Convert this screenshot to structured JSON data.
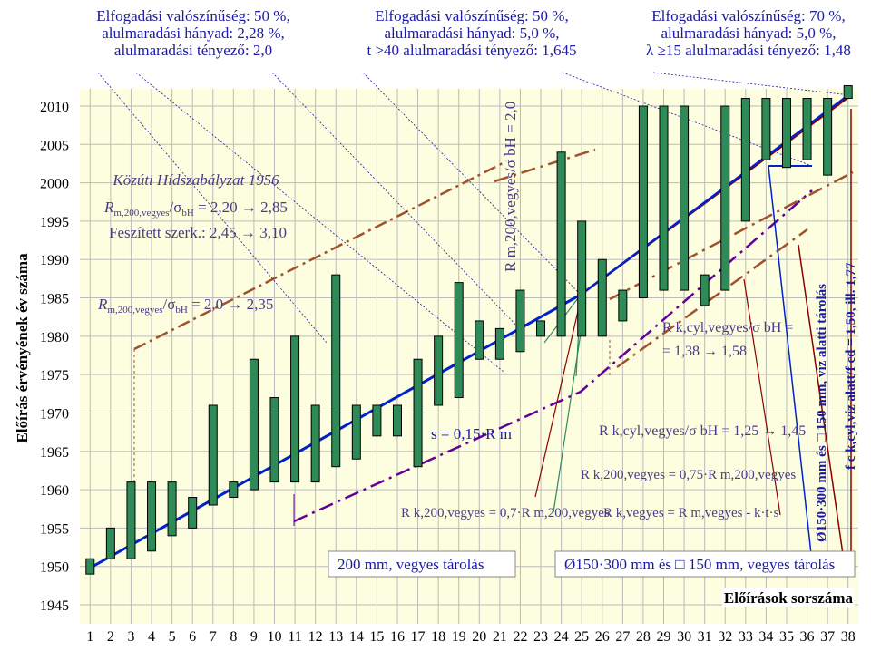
{
  "titles": [
    {
      "lines": [
        "Elfogadási valószínűség: 50 %,",
        "alulmaradási hányad: 2,28 %,",
        "alulmaradási tényező: 2,0"
      ]
    },
    {
      "lines": [
        "Elfogadási valószínűség: 50 %,",
        "alulmaradási hányad: 5,0 %,",
        "t >40 alulmaradási tényező: 1,645"
      ]
    },
    {
      "lines": [
        "Elfogadási valószínűség: 70 %,",
        "alulmaradási hányad: 5,0 %,",
        "λ ≥15 alulmaradási tényező: 1,48"
      ]
    }
  ],
  "colors": {
    "bar": "#2e8b57",
    "bar_edge": "#000000",
    "plot_bg": "#fdfde0",
    "title_text": "#1a1aa6",
    "blue_line": "#0022cc",
    "dark_red_line": "#8b0000",
    "purple_dash": "#660099",
    "brown_dash": "#a0522d"
  },
  "chart_data": {
    "type": "bar",
    "subtype": "floating-range",
    "ylabel": "Előírás érvényének év száma",
    "xlabel": "Előírások sorszáma",
    "ylim": [
      1945,
      2012
    ],
    "yticks": [
      1945,
      1950,
      1955,
      1960,
      1965,
      1970,
      1975,
      1980,
      1985,
      1990,
      1995,
      2000,
      2005,
      2010
    ],
    "categories": [
      "1",
      "2",
      "3",
      "4",
      "5",
      "6",
      "7",
      "8",
      "9",
      "10",
      "11",
      "12",
      "13",
      "14",
      "15",
      "16",
      "17",
      "18",
      "19",
      "20",
      "21",
      "22",
      "23",
      "24",
      "25",
      "26",
      "27",
      "28",
      "29",
      "30",
      "31",
      "32",
      "33",
      "34",
      "35",
      "36",
      "37",
      "38"
    ],
    "ranges": [
      [
        1949,
        1951
      ],
      [
        1951,
        1955
      ],
      [
        1951,
        1961
      ],
      [
        1952,
        1961
      ],
      [
        1954,
        1961
      ],
      [
        1955,
        1959
      ],
      [
        1958,
        1971
      ],
      [
        1959,
        1961
      ],
      [
        1960,
        1977
      ],
      [
        1961,
        1972
      ],
      [
        1961,
        1980
      ],
      [
        1961,
        1971
      ],
      [
        1963,
        1988
      ],
      [
        1964,
        1971
      ],
      [
        1967,
        1971
      ],
      [
        1967,
        1971
      ],
      [
        1963,
        1977
      ],
      [
        1971,
        1980
      ],
      [
        1972,
        1987
      ],
      [
        1977,
        1982
      ],
      [
        1977,
        1981
      ],
      [
        1978,
        1986
      ],
      [
        1980,
        1982
      ],
      [
        1980,
        2004
      ],
      [
        1980,
        1995
      ],
      [
        1980,
        1990
      ],
      [
        1982,
        1986
      ],
      [
        1985,
        2010
      ],
      [
        1986,
        2010
      ],
      [
        1986,
        2010
      ],
      [
        1984,
        1988
      ],
      [
        1986,
        2010
      ],
      [
        1995,
        2011
      ],
      [
        2003,
        2011
      ],
      [
        2002,
        2011
      ],
      [
        2003,
        2011
      ],
      [
        2001,
        2011
      ],
      [
        2011,
        2011
      ]
    ],
    "grid": true
  },
  "annotations": {
    "kozuti_title": "Közúti Hídszabályzat 1956",
    "kozuti_line1_a": "R",
    "kozuti_line1_sub": "m,200,vegyes",
    "kozuti_line1_b": "/σ",
    "kozuti_line1_sub2": "bH",
    "kozuti_line1_c": " = 2,20 → 2,85",
    "feszitett": "Feszített szerk.: 2,45 → 3,10",
    "ratio20_a": "R",
    "ratio20_sub": "m,200,vegyes",
    "ratio20_b": "/σ",
    "ratio20_sub2": "bH",
    "ratio20_c": " = 2,0 → 2,35",
    "vertical_ratio": "R m,200,vegyes/σ bH = 2,0",
    "s_label": "s = 0,15·R m",
    "rk200_07": "R k,200,vegyes = 0,7·R m,200,vegyes",
    "rkcyl_line1": "R k,cyl,vegyes/σ bH =",
    "rkcyl_line2": "= 1,38 → 1,58",
    "rkcyl_125": "R k,cyl,vegyes/σ bH = 1,25 → 1,45",
    "rk200_075": "R k,200,vegyes = 0,75·R m,200,vegyes",
    "rkvegyes": "R k,vegyes = R m,vegyes - k·t·s",
    "right_vertical_1": "Ø150·300 mm és □ 150 mm, víz alatti tárolás",
    "right_vertical_2": "f c k,cyl,víz alatt/f cd = 1,50, ill. 1,77",
    "legend_200": "200 mm, vegyes tárolás",
    "legend_150": "Ø150·300 mm és □ 150 mm, vegyes tárolás"
  }
}
